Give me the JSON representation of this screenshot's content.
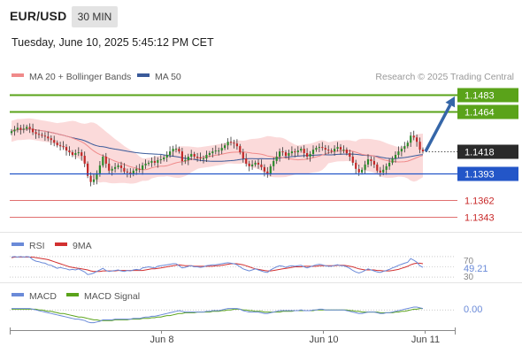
{
  "header": {
    "symbol": "EUR/USD",
    "timeframe": "30 MIN",
    "datetime": "Tuesday, June 10, 2025 5:45:12 PM CET"
  },
  "copyright": "Research © 2025 Trading Central",
  "colors": {
    "resistance": "#5aa31a",
    "support": "#2356c8",
    "weak_level": "#e07070",
    "current": "#2a2a2a",
    "arrow": "#3566a8",
    "candle_up": "#2b8a2b",
    "candle_down": "#c12828",
    "bollinger_fill": "#fbdada",
    "ma20": "#f08a8a",
    "ma50": "#3a5a9a",
    "rsi": "#6a8ad8",
    "rsi_ma": "#d23030",
    "macd": "#6a8ad8",
    "macd_signal": "#5aa31a"
  },
  "chart_data": [
    {
      "type": "candlestick",
      "panel": "price",
      "legend": [
        {
          "label": "MA 20 + Bollinger Bands",
          "color": "#f08a8a"
        },
        {
          "label": "MA 50",
          "color": "#3a5a9a"
        }
      ],
      "ylim": [
        1.133,
        1.1495
      ],
      "x_ticks": [
        "Jun 8",
        "Jun 10",
        "Jun 11"
      ],
      "levels": [
        {
          "value": 1.1483,
          "label": "1.1483",
          "kind": "resistance"
        },
        {
          "value": 1.1464,
          "label": "1.1464",
          "kind": "resistance"
        },
        {
          "value": 1.1418,
          "label": "1.1418",
          "kind": "current"
        },
        {
          "value": 1.1393,
          "label": "1.1393",
          "kind": "support"
        },
        {
          "value": 1.1362,
          "label": "1.1362",
          "kind": "weak"
        },
        {
          "value": 1.1343,
          "label": "1.1343",
          "kind": "weak"
        }
      ],
      "arrow": {
        "from_value": 1.1418,
        "to_value": 1.1483
      },
      "close": [
        1.1441,
        1.1443,
        1.1445,
        1.1443,
        1.1444,
        1.1446,
        1.1444,
        1.144,
        1.1438,
        1.1437,
        1.1436,
        1.1435,
        1.1433,
        1.1431,
        1.1428,
        1.1425,
        1.1424,
        1.1423,
        1.1419,
        1.1417,
        1.1414,
        1.1416,
        1.1417,
        1.1413,
        1.1404,
        1.139,
        1.1383,
        1.1386,
        1.1393,
        1.1402,
        1.1412,
        1.1404,
        1.1396,
        1.1398,
        1.14,
        1.1402,
        1.1399,
        1.1395,
        1.1394,
        1.1392,
        1.1396,
        1.1398,
        1.1397,
        1.1402,
        1.1404,
        1.1405,
        1.1407,
        1.1405,
        1.1408,
        1.1409,
        1.1411,
        1.1414,
        1.1418,
        1.1421,
        1.1421,
        1.1418,
        1.1407,
        1.1408,
        1.1412,
        1.1415,
        1.1412,
        1.1411,
        1.141,
        1.141,
        1.1414,
        1.1416,
        1.1418,
        1.1419,
        1.1419,
        1.1422,
        1.1425,
        1.1429,
        1.1428,
        1.1427,
        1.1424,
        1.1417,
        1.141,
        1.1404,
        1.1401,
        1.1403,
        1.1405,
        1.1403,
        1.14,
        1.1395,
        1.1392,
        1.1401,
        1.1407,
        1.1412,
        1.1418,
        1.1417,
        1.1413,
        1.1416,
        1.1418,
        1.1417,
        1.1419,
        1.1421,
        1.1416,
        1.1412,
        1.1415,
        1.142,
        1.1422,
        1.1423,
        1.1422,
        1.142,
        1.1419,
        1.1418,
        1.1421,
        1.1423,
        1.142,
        1.142,
        1.1416,
        1.1412,
        1.1405,
        1.1398,
        1.1394,
        1.1397,
        1.1403,
        1.1409,
        1.1407,
        1.1403,
        1.1396,
        1.1394,
        1.1397,
        1.1401,
        1.1405,
        1.141,
        1.1414,
        1.1418,
        1.1421,
        1.1424,
        1.1428,
        1.1436,
        1.1434,
        1.1429,
        1.142,
        1.1418
      ],
      "current_value": 1.1418
    },
    {
      "type": "line",
      "panel": "rsi",
      "legend": [
        {
          "label": "RSI",
          "color": "#6a8ad8"
        },
        {
          "label": "9MA",
          "color": "#d23030"
        }
      ],
      "ylim": [
        25,
        75
      ],
      "y_ticks": [
        "70",
        "30"
      ],
      "series": [
        {
          "name": "RSI",
          "values": [
            69,
            70,
            69,
            70,
            69,
            70,
            69,
            64,
            61,
            60,
            58,
            57,
            54,
            53,
            50,
            47,
            49,
            47,
            46,
            44,
            45,
            44,
            46,
            43,
            40,
            35,
            36,
            38,
            41,
            44,
            47,
            43,
            41,
            42,
            43,
            44,
            42,
            41,
            43,
            42,
            44,
            45,
            44,
            48,
            49,
            50,
            49,
            48,
            51,
            52,
            53,
            54,
            55,
            56,
            56,
            52,
            48,
            49,
            51,
            52,
            50,
            50,
            49,
            50,
            52,
            53,
            54,
            54,
            55,
            56,
            57,
            58,
            57,
            56,
            54,
            50,
            46,
            44,
            42,
            44,
            46,
            44,
            42,
            40,
            39,
            44,
            47,
            50,
            52,
            51,
            49,
            51,
            52,
            51,
            52,
            53,
            50,
            48,
            50,
            52,
            54,
            55,
            54,
            52,
            51,
            51,
            53,
            54,
            52,
            52,
            50,
            47,
            43,
            40,
            38,
            40,
            43,
            46,
            44,
            42,
            40,
            39,
            41,
            43,
            45,
            48,
            50,
            53,
            55,
            57,
            59,
            66,
            63,
            59,
            52,
            49
          ]
        },
        {
          "name": "9MA",
          "values": [
            68,
            69,
            69,
            69,
            69,
            69,
            69,
            69,
            68,
            67,
            66,
            65,
            64,
            62,
            60,
            58,
            56,
            54,
            52,
            50,
            49,
            48,
            47,
            46,
            45,
            44,
            42,
            41,
            41,
            41,
            42,
            42,
            42,
            42,
            42,
            43,
            43,
            43,
            43,
            43,
            43,
            43,
            43,
            43,
            44,
            45,
            46,
            46,
            47,
            48,
            49,
            50,
            51,
            52,
            53,
            54,
            53,
            52,
            52,
            52,
            51,
            51,
            51,
            51,
            51,
            51,
            51,
            52,
            52,
            53,
            54,
            55,
            56,
            56,
            56,
            55,
            54,
            52,
            50,
            48,
            46,
            45,
            44,
            43,
            42,
            42,
            43,
            44,
            45,
            46,
            47,
            48,
            49,
            50,
            50,
            50,
            51,
            51,
            51,
            51,
            51,
            52,
            52,
            52,
            52,
            52,
            52,
            53,
            53,
            53,
            52,
            51,
            50,
            48,
            46,
            45,
            44,
            44,
            44,
            44,
            43,
            43,
            42,
            42,
            42,
            43,
            44,
            45,
            47,
            49,
            51,
            54,
            56,
            57,
            57,
            56
          ]
        }
      ],
      "last_value_label": "49.21"
    },
    {
      "type": "line",
      "panel": "macd",
      "legend": [
        {
          "label": "MACD",
          "color": "#6a8ad8"
        },
        {
          "label": "MACD Signal",
          "color": "#5aa31a"
        }
      ],
      "ylim": [
        -0.0021,
        0.0009
      ],
      "series": [
        {
          "name": "MACD",
          "values": [
            0.0002,
            0.0002,
            0.0002,
            0.0002,
            0.0002,
            0.0002,
            0.0002,
            0.0001,
            0.0,
            -0.0001,
            -0.0002,
            -0.0003,
            -0.0004,
            -0.0005,
            -0.0006,
            -0.0007,
            -0.0008,
            -0.0009,
            -0.001,
            -0.0011,
            -0.0012,
            -0.0013,
            -0.0013,
            -0.0014,
            -0.0015,
            -0.0017,
            -0.0018,
            -0.0018,
            -0.0017,
            -0.0016,
            -0.0014,
            -0.0014,
            -0.0014,
            -0.0014,
            -0.0013,
            -0.0013,
            -0.0013,
            -0.0013,
            -0.0013,
            -0.0013,
            -0.0012,
            -0.0012,
            -0.0012,
            -0.0011,
            -0.001,
            -0.001,
            -0.0009,
            -0.0009,
            -0.0008,
            -0.0007,
            -0.0006,
            -0.0005,
            -0.0004,
            -0.0003,
            -0.0002,
            -0.0001,
            -0.0002,
            -0.0003,
            -0.0003,
            -0.0003,
            -0.0003,
            -0.0003,
            -0.0003,
            -0.0003,
            -0.0002,
            -0.0002,
            -0.0001,
            -0.0001,
            -0.0001,
            0.0,
            0.0001,
            0.0002,
            0.0002,
            0.0002,
            0.0002,
            0.0001,
            -0.0001,
            -0.0002,
            -0.0003,
            -0.0003,
            -0.0003,
            -0.0003,
            -0.0004,
            -0.0005,
            -0.0005,
            -0.0004,
            -0.0003,
            -0.0002,
            -0.0001,
            -0.0001,
            -0.0001,
            -0.0001,
            -0.0001,
            -0.0001,
            -0.0001,
            0.0,
            -0.0001,
            -0.0001,
            -0.0001,
            0.0,
            0.0,
            0.0001,
            0.0001,
            0.0,
            0.0,
            0.0,
            0.0,
            0.0,
            0.0,
            0.0,
            -0.0001,
            -0.0002,
            -0.0003,
            -0.0004,
            -0.0005,
            -0.0005,
            -0.0004,
            -0.0003,
            -0.0003,
            -0.0003,
            -0.0004,
            -0.0005,
            -0.0005,
            -0.0004,
            -0.0004,
            -0.0003,
            -0.0002,
            -0.0001,
            0.0,
            0.0001,
            0.0002,
            0.0003,
            0.0004,
            0.0004,
            0.0003,
            0.0002
          ]
        },
        {
          "name": "MACD Signal",
          "values": [
            0.0001,
            0.0001,
            0.0001,
            0.0001,
            0.0001,
            0.0001,
            0.0001,
            0.0001,
            0.0001,
            0.0,
            0.0,
            -0.0001,
            -0.0002,
            -0.0002,
            -0.0003,
            -0.0004,
            -0.0005,
            -0.0005,
            -0.0006,
            -0.0007,
            -0.0008,
            -0.0009,
            -0.001,
            -0.001,
            -0.0011,
            -0.0012,
            -0.0013,
            -0.0014,
            -0.0014,
            -0.0015,
            -0.0015,
            -0.0015,
            -0.0015,
            -0.0015,
            -0.0014,
            -0.0014,
            -0.0014,
            -0.0014,
            -0.0014,
            -0.0013,
            -0.0013,
            -0.0013,
            -0.0013,
            -0.0012,
            -0.0012,
            -0.0012,
            -0.0011,
            -0.0011,
            -0.001,
            -0.001,
            -0.0009,
            -0.0008,
            -0.0008,
            -0.0007,
            -0.0006,
            -0.0005,
            -0.0005,
            -0.0004,
            -0.0004,
            -0.0004,
            -0.0004,
            -0.0003,
            -0.0003,
            -0.0003,
            -0.0003,
            -0.0003,
            -0.0002,
            -0.0002,
            -0.0002,
            -0.0001,
            -0.0001,
            0.0,
            0.0,
            0.0001,
            0.0001,
            0.0001,
            0.0,
            0.0,
            -0.0001,
            -0.0001,
            -0.0002,
            -0.0002,
            -0.0002,
            -0.0003,
            -0.0003,
            -0.0003,
            -0.0003,
            -0.0003,
            -0.0003,
            -0.0002,
            -0.0002,
            -0.0002,
            -0.0002,
            -0.0001,
            -0.0001,
            -0.0001,
            -0.0001,
            -0.0001,
            -0.0001,
            -0.0001,
            0.0,
            0.0,
            0.0,
            0.0,
            0.0,
            0.0,
            0.0,
            0.0,
            0.0,
            0.0,
            0.0,
            -0.0001,
            -0.0001,
            -0.0002,
            -0.0002,
            -0.0003,
            -0.0003,
            -0.0003,
            -0.0003,
            -0.0003,
            -0.0003,
            -0.0004,
            -0.0004,
            -0.0004,
            -0.0004,
            -0.0004,
            -0.0003,
            -0.0003,
            -0.0002,
            -0.0002,
            -0.0001,
            0.0,
            0.0001,
            0.0001,
            0.0002,
            0.0002
          ]
        }
      ],
      "last_value_label": "0.00"
    }
  ]
}
